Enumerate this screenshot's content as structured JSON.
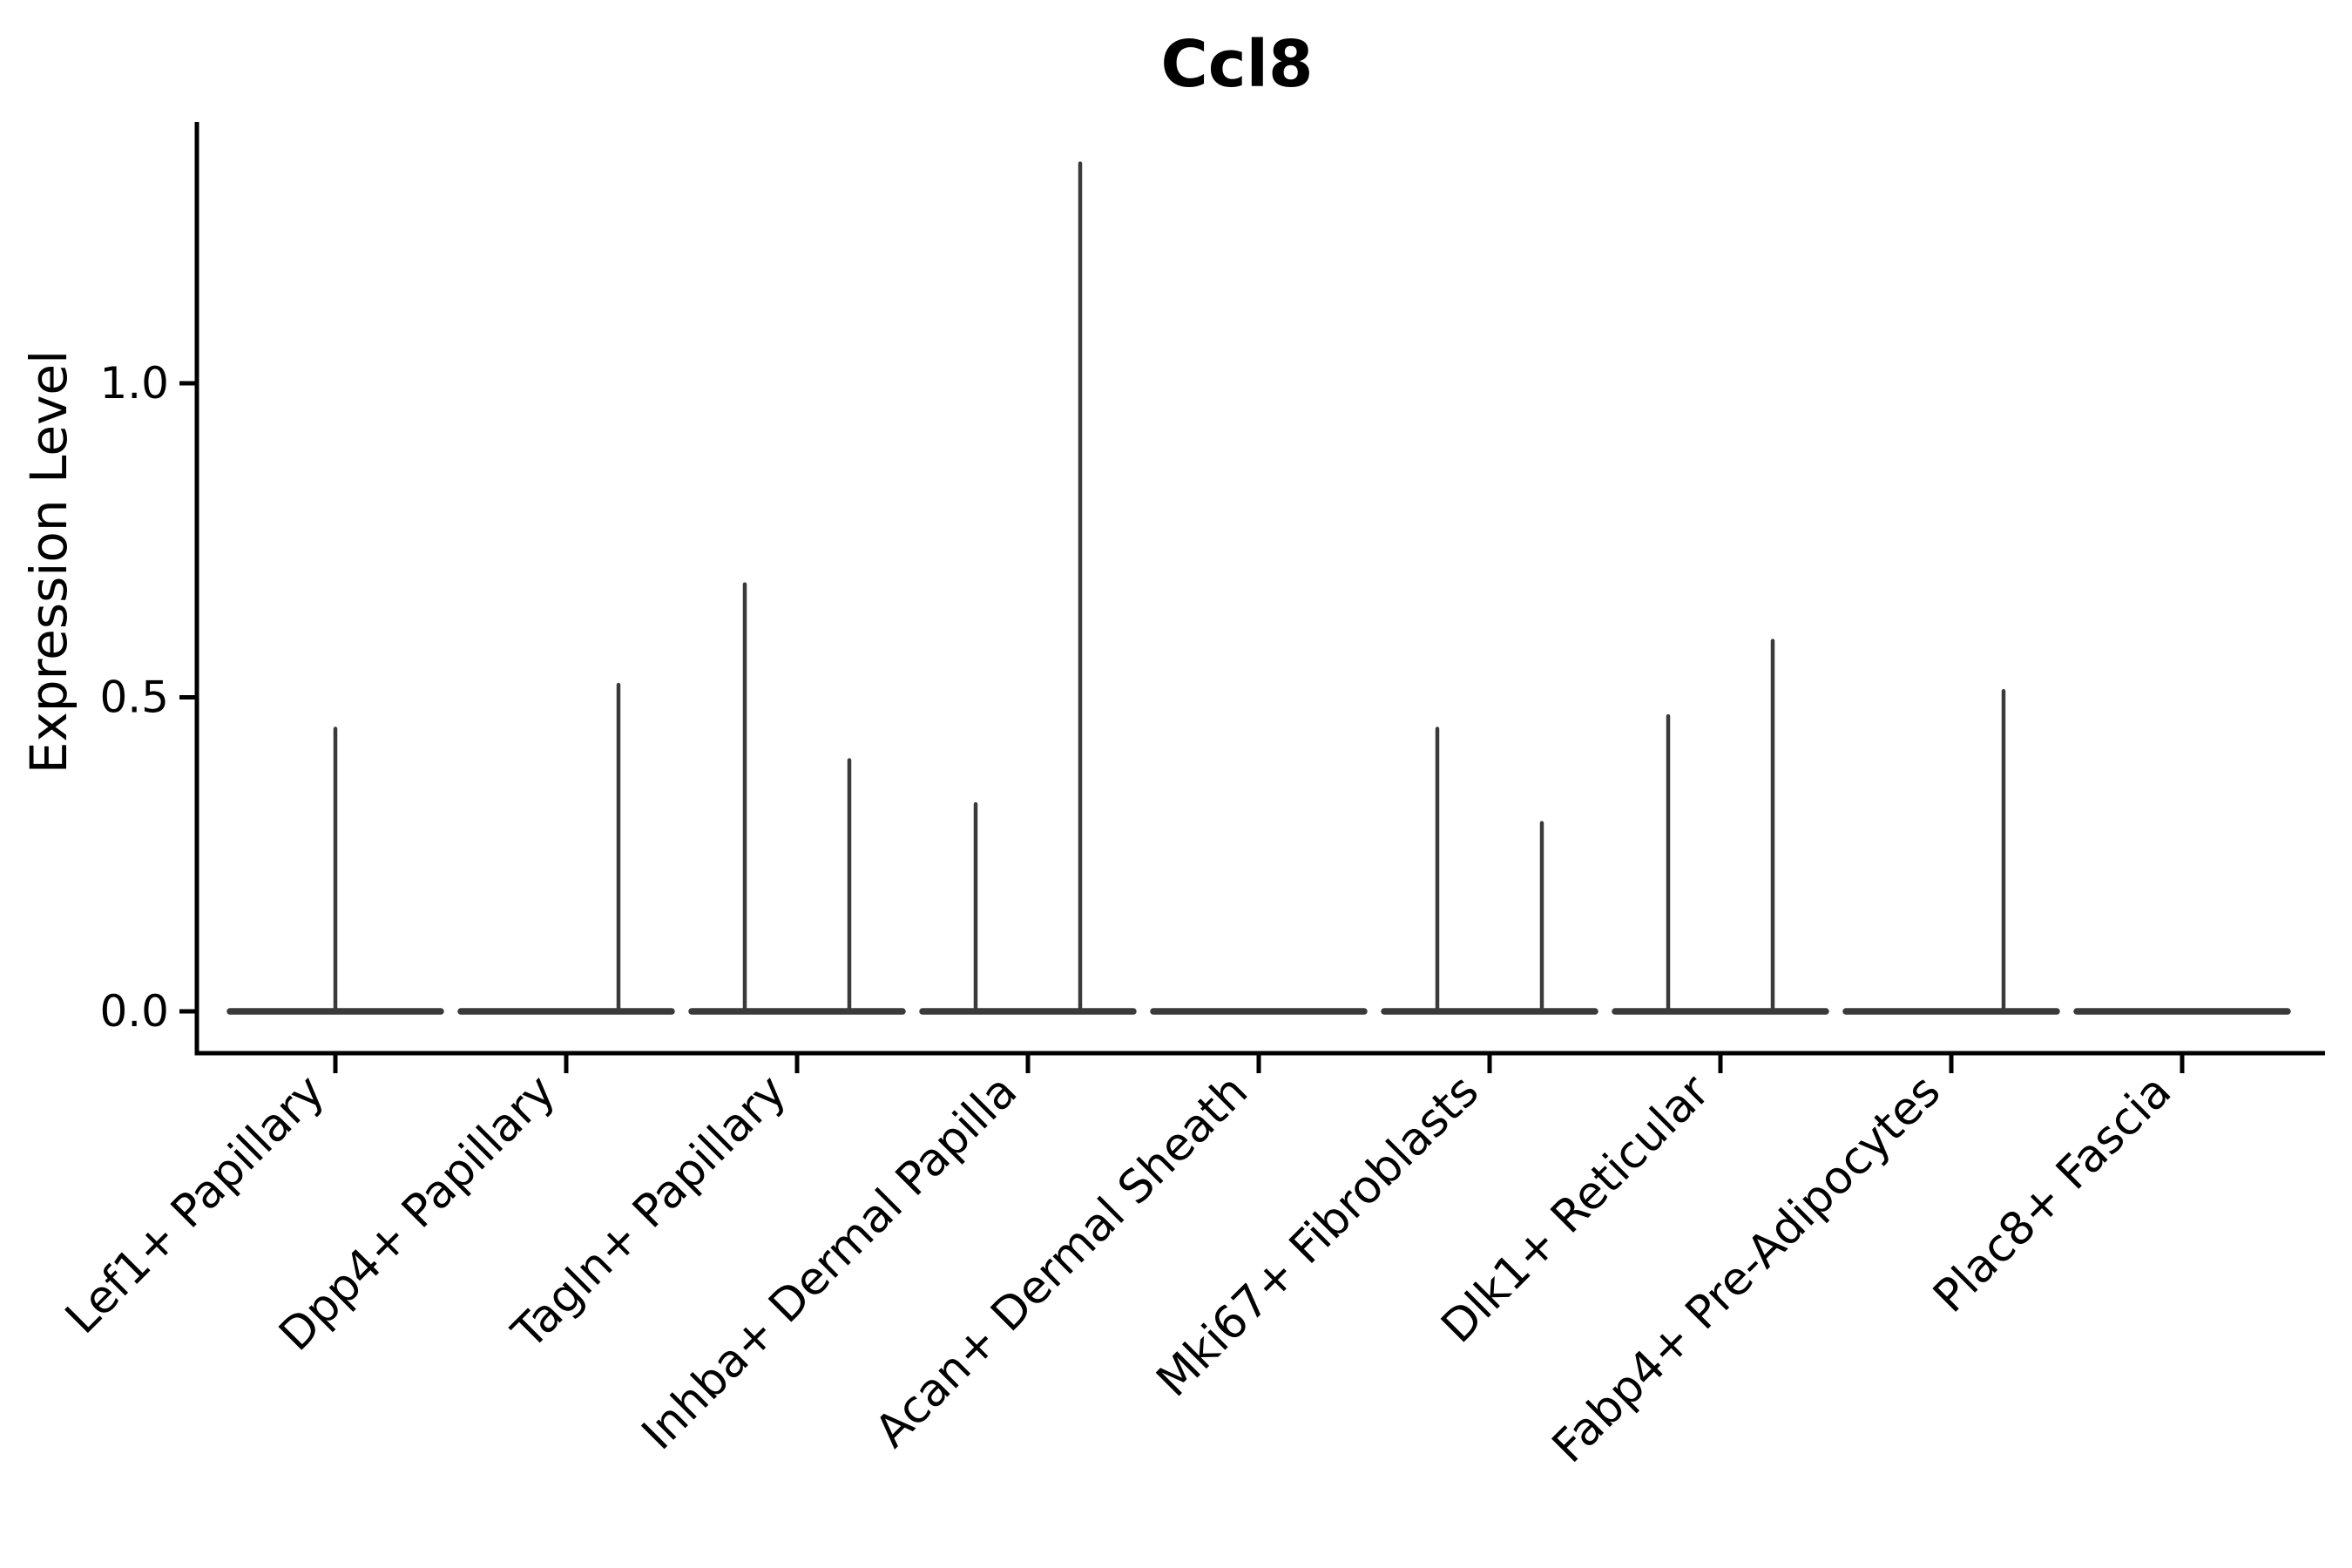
{
  "chart_data": {
    "type": "violin",
    "title": "Ccl8",
    "xlabel": "",
    "ylabel": "Expression Level",
    "ytick_labels": [
      "0.0",
      "0.5",
      "1.0"
    ],
    "ytick_values": [
      0.0,
      0.5,
      1.0
    ],
    "ylim": [
      -0.067,
      1.416
    ],
    "grid": false,
    "legend": "none",
    "background_color": "#ffffff",
    "axis_color": "#000000",
    "violin_color": "#3a3a3a",
    "categories": [
      "Lef1+ Papillary",
      "Dpp4+ Papillary",
      "Tagln+ Papillary",
      "Inhba+ Dermal Papilla",
      "Acan+ Dermal Sheath",
      "Mki67+ Fibroblasts",
      "Dlk1+ Reticular",
      "Fabp4+ Pre-Adipocytes",
      "Plac8+ Fascia"
    ],
    "series": [
      {
        "category": "Lef1+ Papillary",
        "spikes": [
          {
            "side": "center",
            "max": 0.45
          }
        ]
      },
      {
        "category": "Dpp4+ Papillary",
        "spikes": [
          {
            "side": "right",
            "max": 0.52
          }
        ]
      },
      {
        "category": "Tagln+ Papillary",
        "spikes": [
          {
            "side": "left",
            "max": 0.68
          },
          {
            "side": "right",
            "max": 0.4
          }
        ]
      },
      {
        "category": "Inhba+ Dermal Papilla",
        "spikes": [
          {
            "side": "left",
            "max": 0.33
          },
          {
            "side": "right",
            "max": 1.35
          }
        ]
      },
      {
        "category": "Acan+ Dermal Sheath",
        "spikes": []
      },
      {
        "category": "Mki67+ Fibroblasts",
        "spikes": [
          {
            "side": "left",
            "max": 0.45
          },
          {
            "side": "right",
            "max": 0.3
          }
        ]
      },
      {
        "category": "Dlk1+ Reticular",
        "spikes": [
          {
            "side": "left",
            "max": 0.47
          },
          {
            "side": "right",
            "max": 0.59
          }
        ]
      },
      {
        "category": "Fabp4+ Pre-Adipocytes",
        "spikes": [
          {
            "side": "right",
            "max": 0.51
          }
        ]
      },
      {
        "category": "Plac8+ Fascia",
        "spikes": []
      }
    ]
  }
}
